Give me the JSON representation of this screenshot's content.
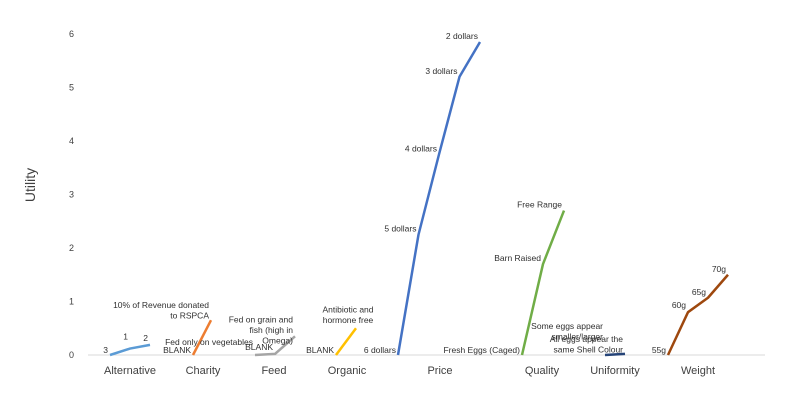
{
  "chart_data": {
    "type": "line",
    "ylabel": "Utility",
    "ylim": [
      0,
      6
    ],
    "yticks": [
      "0",
      "1",
      "2",
      "3",
      "4",
      "5",
      "6"
    ],
    "grid": false,
    "categories": [
      "Alternative",
      "Charity",
      "Feed",
      "Organic",
      "Price",
      "Quality",
      "Uniformity",
      "Weight"
    ],
    "series": [
      {
        "category": "Alternative",
        "color": "#5B9BD5",
        "points": [
          {
            "label": "3",
            "y": 0.0
          },
          {
            "label": "1",
            "y": 0.12
          },
          {
            "label": "2",
            "y": 0.19
          }
        ]
      },
      {
        "category": "Charity",
        "color": "#ED7D31",
        "points": [
          {
            "label": "BLANK",
            "y": 0.0
          },
          {
            "label": "10% of Revenue donated to RSPCA",
            "y": 0.65
          }
        ]
      },
      {
        "category": "Feed",
        "color": "#A5A5A5",
        "points": [
          {
            "label": "Fed only on vegetables",
            "y": 0.0
          },
          {
            "label": "BLANK",
            "y": 0.02
          },
          {
            "label": "Fed on grain and fish (high in Omega)",
            "y": 0.35
          }
        ]
      },
      {
        "category": "Organic",
        "color": "#FFC000",
        "points": [
          {
            "label": "BLANK",
            "y": 0.0
          },
          {
            "label": "Antibiotic and hormone free",
            "y": 0.5
          }
        ]
      },
      {
        "category": "Price",
        "color": "#4472C4",
        "points": [
          {
            "label": "6 dollars",
            "y": 0.0
          },
          {
            "label": "5 dollars",
            "y": 2.25
          },
          {
            "label": "4 dollars",
            "y": 3.75
          },
          {
            "label": "3 dollars",
            "y": 5.2
          },
          {
            "label": "2 dollars",
            "y": 5.85
          }
        ]
      },
      {
        "category": "Quality",
        "color": "#70AD47",
        "points": [
          {
            "label": "Fresh Eggs (Caged)",
            "y": 0.0
          },
          {
            "label": "Barn Raised",
            "y": 1.7
          },
          {
            "label": "Free Range",
            "y": 2.7
          }
        ]
      },
      {
        "category": "Uniformity",
        "color": "#264478",
        "points": [
          {
            "label": "Some eggs appear smaller/larger",
            "y": 0.0
          },
          {
            "label": "All eggs appear the same Shell Colour",
            "y": 0.02
          }
        ]
      },
      {
        "category": "Weight",
        "color": "#9E480E",
        "points": [
          {
            "label": "55g",
            "y": 0.0
          },
          {
            "label": "60g",
            "y": 0.8
          },
          {
            "label": "65g",
            "y": 1.07
          },
          {
            "label": "70g",
            "y": 1.5
          }
        ]
      }
    ]
  }
}
